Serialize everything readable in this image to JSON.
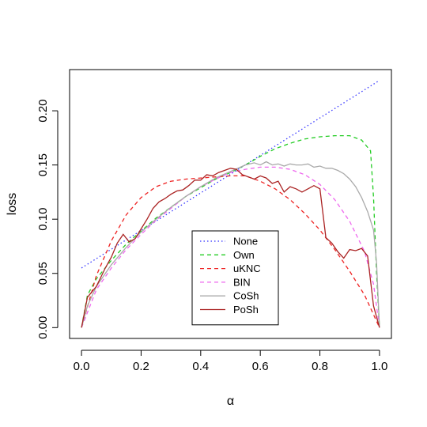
{
  "chart_data": {
    "type": "line",
    "title": "",
    "xlabel": "α",
    "ylabel": "loss",
    "xlim": [
      -0.04,
      1.04
    ],
    "ylim": [
      -0.01,
      0.238
    ],
    "x_ticks": [
      0.0,
      0.2,
      0.4,
      0.6,
      0.8,
      1.0
    ],
    "x_tick_labels": [
      "0.0",
      "0.2",
      "0.4",
      "0.6",
      "0.8",
      "1.0"
    ],
    "y_ticks": [
      0.0,
      0.05,
      0.1,
      0.15,
      0.2
    ],
    "y_tick_labels": [
      "0.00",
      "0.05",
      "0.10",
      "0.15",
      "0.20"
    ],
    "grid": false,
    "legend": {
      "position": "bottom-center",
      "entries": [
        "None",
        "Own",
        "uKNC",
        "BIN",
        "CoSh",
        "PoSh"
      ]
    },
    "series": [
      {
        "name": "None",
        "color": "#3333ff",
        "dash": "dotted",
        "x": [
          0,
          1
        ],
        "y": [
          0.055,
          0.228
        ]
      },
      {
        "name": "Own",
        "color": "#22cc22",
        "dash": "dashed",
        "x": [
          0,
          0.02,
          0.05,
          0.1,
          0.15,
          0.2,
          0.25,
          0.3,
          0.35,
          0.4,
          0.45,
          0.5,
          0.55,
          0.6,
          0.65,
          0.7,
          0.75,
          0.8,
          0.85,
          0.9,
          0.94,
          0.97,
          0.98,
          0.99,
          1.0
        ],
        "y": [
          0.0,
          0.03,
          0.045,
          0.062,
          0.077,
          0.089,
          0.101,
          0.111,
          0.121,
          0.129,
          0.137,
          0.143,
          0.15,
          0.158,
          0.165,
          0.17,
          0.174,
          0.176,
          0.177,
          0.177,
          0.173,
          0.163,
          0.12,
          0.05,
          0.0
        ]
      },
      {
        "name": "uKNC",
        "color": "#ee2222",
        "dash": "dashed",
        "x": [
          0,
          0.05,
          0.1,
          0.15,
          0.2,
          0.25,
          0.3,
          0.35,
          0.4,
          0.45,
          0.5,
          0.55,
          0.6,
          0.65,
          0.7,
          0.75,
          0.8,
          0.85,
          0.9,
          0.95,
          1.0
        ],
        "y": [
          0.0,
          0.048,
          0.08,
          0.104,
          0.12,
          0.13,
          0.135,
          0.137,
          0.138,
          0.139,
          0.14,
          0.14,
          0.135,
          0.128,
          0.118,
          0.105,
          0.09,
          0.072,
          0.052,
          0.03,
          0.0
        ]
      },
      {
        "name": "BIN",
        "color": "#ee66ee",
        "dash": "dashed",
        "x": [
          0,
          0.05,
          0.1,
          0.15,
          0.2,
          0.25,
          0.3,
          0.35,
          0.4,
          0.45,
          0.5,
          0.55,
          0.6,
          0.65,
          0.7,
          0.75,
          0.8,
          0.85,
          0.9,
          0.95,
          0.98,
          1.0
        ],
        "y": [
          0.0,
          0.035,
          0.055,
          0.072,
          0.086,
          0.099,
          0.11,
          0.121,
          0.13,
          0.137,
          0.143,
          0.146,
          0.148,
          0.148,
          0.146,
          0.141,
          0.132,
          0.118,
          0.098,
          0.07,
          0.04,
          0.0
        ]
      },
      {
        "name": "CoSh",
        "color": "#aaaaaa",
        "dash": "solid",
        "x": [
          0,
          0.02,
          0.05,
          0.1,
          0.15,
          0.2,
          0.25,
          0.3,
          0.35,
          0.4,
          0.45,
          0.5,
          0.55,
          0.58,
          0.6,
          0.62,
          0.64,
          0.66,
          0.68,
          0.7,
          0.72,
          0.74,
          0.76,
          0.78,
          0.8,
          0.82,
          0.84,
          0.86,
          0.88,
          0.9,
          0.92,
          0.94,
          0.96,
          0.98,
          0.99,
          1.0
        ],
        "y": [
          0.0,
          0.02,
          0.038,
          0.058,
          0.074,
          0.088,
          0.1,
          0.111,
          0.121,
          0.13,
          0.138,
          0.144,
          0.15,
          0.152,
          0.15,
          0.153,
          0.15,
          0.151,
          0.149,
          0.151,
          0.15,
          0.15,
          0.151,
          0.148,
          0.149,
          0.147,
          0.147,
          0.145,
          0.142,
          0.137,
          0.13,
          0.12,
          0.107,
          0.09,
          0.06,
          0.0
        ]
      },
      {
        "name": "PoSh",
        "color": "#aa2222",
        "dash": "solid",
        "x": [
          0,
          0.02,
          0.05,
          0.08,
          0.1,
          0.12,
          0.14,
          0.16,
          0.18,
          0.2,
          0.22,
          0.24,
          0.26,
          0.28,
          0.3,
          0.32,
          0.34,
          0.36,
          0.38,
          0.4,
          0.42,
          0.44,
          0.46,
          0.48,
          0.5,
          0.52,
          0.54,
          0.56,
          0.58,
          0.6,
          0.62,
          0.64,
          0.66,
          0.68,
          0.7,
          0.72,
          0.74,
          0.76,
          0.78,
          0.8,
          0.82,
          0.84,
          0.86,
          0.88,
          0.9,
          0.92,
          0.94,
          0.96,
          0.98,
          1.0
        ],
        "y": [
          0.0,
          0.028,
          0.038,
          0.055,
          0.065,
          0.078,
          0.086,
          0.079,
          0.082,
          0.091,
          0.1,
          0.11,
          0.116,
          0.119,
          0.123,
          0.126,
          0.127,
          0.131,
          0.136,
          0.136,
          0.141,
          0.14,
          0.143,
          0.145,
          0.147,
          0.146,
          0.141,
          0.139,
          0.137,
          0.14,
          0.138,
          0.133,
          0.135,
          0.125,
          0.13,
          0.128,
          0.125,
          0.128,
          0.131,
          0.128,
          0.083,
          0.078,
          0.07,
          0.064,
          0.072,
          0.071,
          0.073,
          0.066,
          0.02,
          0.0
        ]
      }
    ]
  }
}
